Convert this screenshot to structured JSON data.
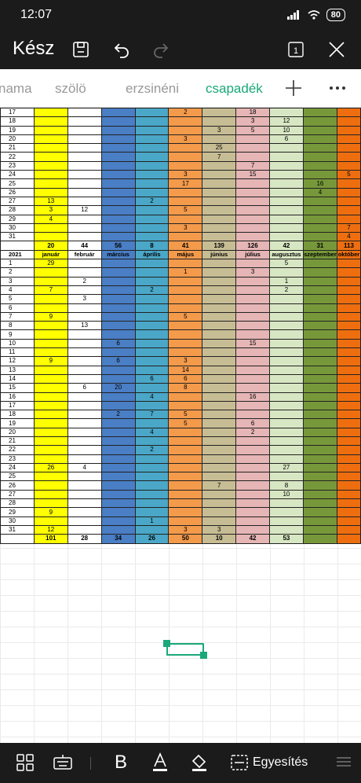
{
  "status": {
    "time": "12:07",
    "battery": "80"
  },
  "toolbar": {
    "done": "Kész"
  },
  "tabs": [
    "nama",
    "szölö",
    "erzsinéni",
    "csapadék"
  ],
  "active_tab": "csapadék",
  "bottom": {
    "merge": "Egyesítés"
  },
  "colors": [
    "#ffff00",
    "#ffffff",
    "#4a7ec5",
    "#4aa7c7",
    "#f39a4b",
    "#c7bd94",
    "#e6b5b5",
    "#d8e7c3",
    "#77983a",
    "#ee6e0f"
  ],
  "top_rows": [
    [
      "17",
      "",
      "",
      "",
      "",
      "2",
      "",
      "18",
      "",
      "",
      ""
    ],
    [
      "18",
      "",
      "",
      "",
      "",
      "",
      "",
      "3",
      "12",
      "",
      ""
    ],
    [
      "19",
      "",
      "",
      "",
      "",
      "",
      "3",
      "5",
      "10",
      "",
      ""
    ],
    [
      "20",
      "",
      "",
      "",
      "",
      "3",
      "",
      "",
      "6",
      "",
      ""
    ],
    [
      "21",
      "",
      "",
      "",
      "",
      "",
      "25",
      "",
      "",
      "",
      ""
    ],
    [
      "22",
      "",
      "",
      "",
      "",
      "",
      "7",
      "",
      "",
      "",
      ""
    ],
    [
      "23",
      "",
      "",
      "",
      "",
      "",
      "",
      "7",
      "",
      "",
      ""
    ],
    [
      "24",
      "",
      "",
      "",
      "",
      "3",
      "",
      "15",
      "",
      "",
      "5"
    ],
    [
      "25",
      "",
      "",
      "",
      "",
      "17",
      "",
      "",
      "",
      "16",
      ""
    ],
    [
      "26",
      "",
      "",
      "",
      "",
      "",
      "",
      "",
      "",
      "4",
      ""
    ],
    [
      "27",
      "13",
      "",
      "",
      "2",
      "",
      "",
      "",
      "",
      "",
      ""
    ],
    [
      "28",
      "3",
      "12",
      "",
      "",
      "5",
      "",
      "",
      "",
      "",
      ""
    ],
    [
      "29",
      "4",
      "",
      "",
      "",
      "",
      "",
      "",
      "",
      "",
      ""
    ],
    [
      "30",
      "",
      "",
      "",
      "",
      "3",
      "",
      "",
      "",
      "",
      "7"
    ],
    [
      "31",
      "",
      "",
      "",
      "",
      "",
      "",
      "",
      "",
      "",
      "4"
    ],
    [
      "",
      "20",
      "44",
      "56",
      "8",
      "41",
      "139",
      "126",
      "42",
      "31",
      "113"
    ]
  ],
  "months_row": [
    "2021",
    "január",
    "február",
    "március",
    "április",
    "május",
    "június",
    "július",
    "augusztus",
    "szeptember",
    "október"
  ],
  "bottom_rows": [
    [
      "1",
      "29",
      "",
      "",
      "",
      "",
      "",
      "",
      "5",
      "",
      ""
    ],
    [
      "2",
      "",
      "",
      "",
      "",
      "1",
      "",
      "3",
      "",
      "",
      ""
    ],
    [
      "3",
      "",
      "2",
      "",
      "",
      "",
      "",
      "",
      "1",
      "",
      ""
    ],
    [
      "4",
      "7",
      "",
      "",
      "2",
      "",
      "",
      "",
      "2",
      "",
      ""
    ],
    [
      "5",
      "",
      "3",
      "",
      "",
      "",
      "",
      "",
      "",
      "",
      ""
    ],
    [
      "6",
      "",
      "",
      "",
      "",
      "",
      "",
      "",
      "",
      "",
      ""
    ],
    [
      "7",
      "9",
      "",
      "",
      "",
      "5",
      "",
      "",
      "",
      "",
      ""
    ],
    [
      "8",
      "",
      "13",
      "",
      "",
      "",
      "",
      "",
      "",
      "",
      ""
    ],
    [
      "9",
      "",
      "",
      "",
      "",
      "",
      "",
      "",
      "",
      "",
      ""
    ],
    [
      "10",
      "",
      "",
      "6",
      "",
      "",
      "",
      "15",
      "",
      "",
      ""
    ],
    [
      "11",
      "",
      "",
      "",
      "",
      "",
      "",
      "",
      "",
      "",
      ""
    ],
    [
      "12",
      "9",
      "",
      "6",
      "",
      "3",
      "",
      "",
      "",
      "",
      ""
    ],
    [
      "13",
      "",
      "",
      "",
      "",
      "14",
      "",
      "",
      "",
      "",
      ""
    ],
    [
      "14",
      "",
      "",
      "",
      "6",
      "6",
      "",
      "",
      "",
      "",
      ""
    ],
    [
      "15",
      "",
      "6",
      "20",
      "",
      "8",
      "",
      "",
      "",
      "",
      ""
    ],
    [
      "16",
      "",
      "",
      "",
      "4",
      "",
      "",
      "16",
      "",
      "",
      ""
    ],
    [
      "17",
      "",
      "",
      "",
      "",
      "",
      "",
      "",
      "",
      "",
      ""
    ],
    [
      "18",
      "",
      "",
      "2",
      "7",
      "5",
      "",
      "",
      "",
      "",
      ""
    ],
    [
      "19",
      "",
      "",
      "",
      "",
      "5",
      "",
      "6",
      "",
      "",
      ""
    ],
    [
      "20",
      "",
      "",
      "",
      "4",
      "",
      "",
      "2",
      "",
      "",
      ""
    ],
    [
      "21",
      "",
      "",
      "",
      "",
      "",
      "",
      "",
      "",
      "",
      ""
    ],
    [
      "22",
      "",
      "",
      "",
      "2",
      "",
      "",
      "",
      "",
      "",
      ""
    ],
    [
      "23",
      "",
      "",
      "",
      "",
      "",
      "",
      "",
      "",
      "",
      ""
    ],
    [
      "24",
      "26",
      "4",
      "",
      "",
      "",
      "",
      "",
      "27",
      "",
      ""
    ],
    [
      "25",
      "",
      "",
      "",
      "",
      "",
      "",
      "",
      "",
      "",
      ""
    ],
    [
      "26",
      "",
      "",
      "",
      "",
      "",
      "7",
      "",
      "8",
      "",
      ""
    ],
    [
      "27",
      "",
      "",
      "",
      "",
      "",
      "",
      "",
      "10",
      "",
      ""
    ],
    [
      "28",
      "",
      "",
      "",
      "",
      "",
      "",
      "",
      "",
      "",
      ""
    ],
    [
      "29",
      "9",
      "",
      "",
      "",
      "",
      "",
      "",
      "",
      "",
      ""
    ],
    [
      "30",
      "",
      "",
      "",
      "1",
      "",
      "",
      "",
      "",
      "",
      ""
    ],
    [
      "31",
      "12",
      "",
      "",
      "",
      "3",
      "3",
      "",
      "",
      "",
      ""
    ],
    [
      "",
      "101",
      "28",
      "34",
      "26",
      "50",
      "10",
      "42",
      "53",
      "",
      ""
    ]
  ]
}
